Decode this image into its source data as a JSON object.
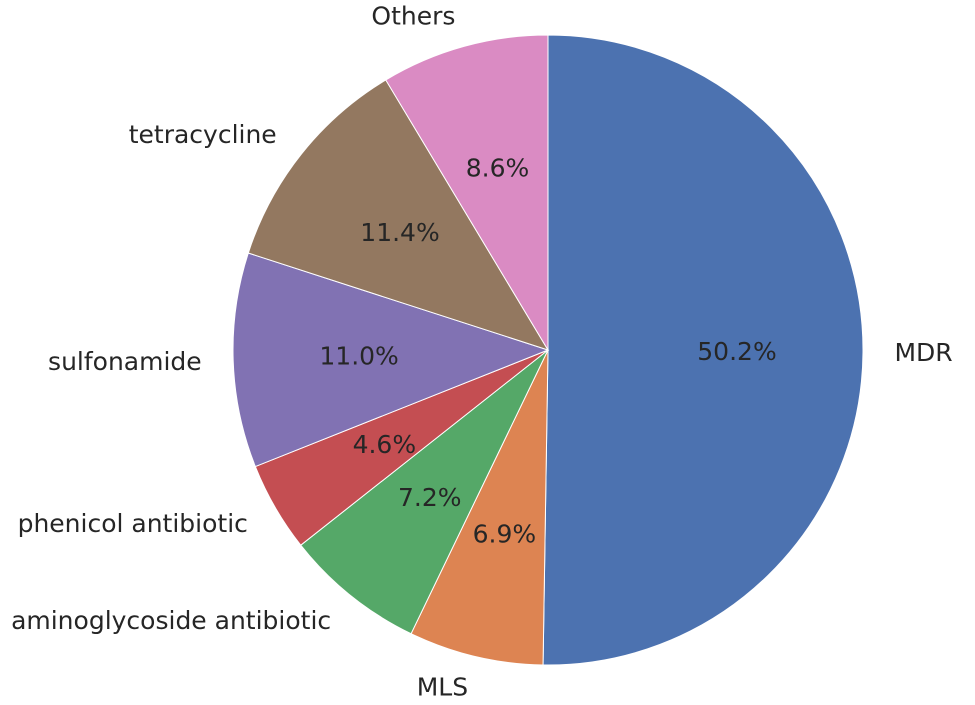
{
  "chart_data": {
    "type": "pie",
    "start_angle_deg": 90,
    "direction": "clockwise",
    "slices": [
      {
        "label": "MDR",
        "value": 50.2,
        "pct_label": "50.2%",
        "color": "#4c72b0"
      },
      {
        "label": "MLS",
        "value": 6.9,
        "pct_label": "6.9%",
        "color": "#dd8452"
      },
      {
        "label": "aminoglycoside antibiotic",
        "value": 7.2,
        "pct_label": "7.2%",
        "color": "#55a868"
      },
      {
        "label": "phenicol antibiotic",
        "value": 4.6,
        "pct_label": "4.6%",
        "color": "#c44e52"
      },
      {
        "label": "sulfonamide",
        "value": 11.0,
        "pct_label": "11.0%",
        "color": "#8172b3"
      },
      {
        "label": "tetracycline",
        "value": 11.4,
        "pct_label": "11.4%",
        "color": "#937860"
      },
      {
        "label": "Others",
        "value": 8.6,
        "pct_label": "8.6%",
        "color": "#da8bc3"
      }
    ]
  }
}
